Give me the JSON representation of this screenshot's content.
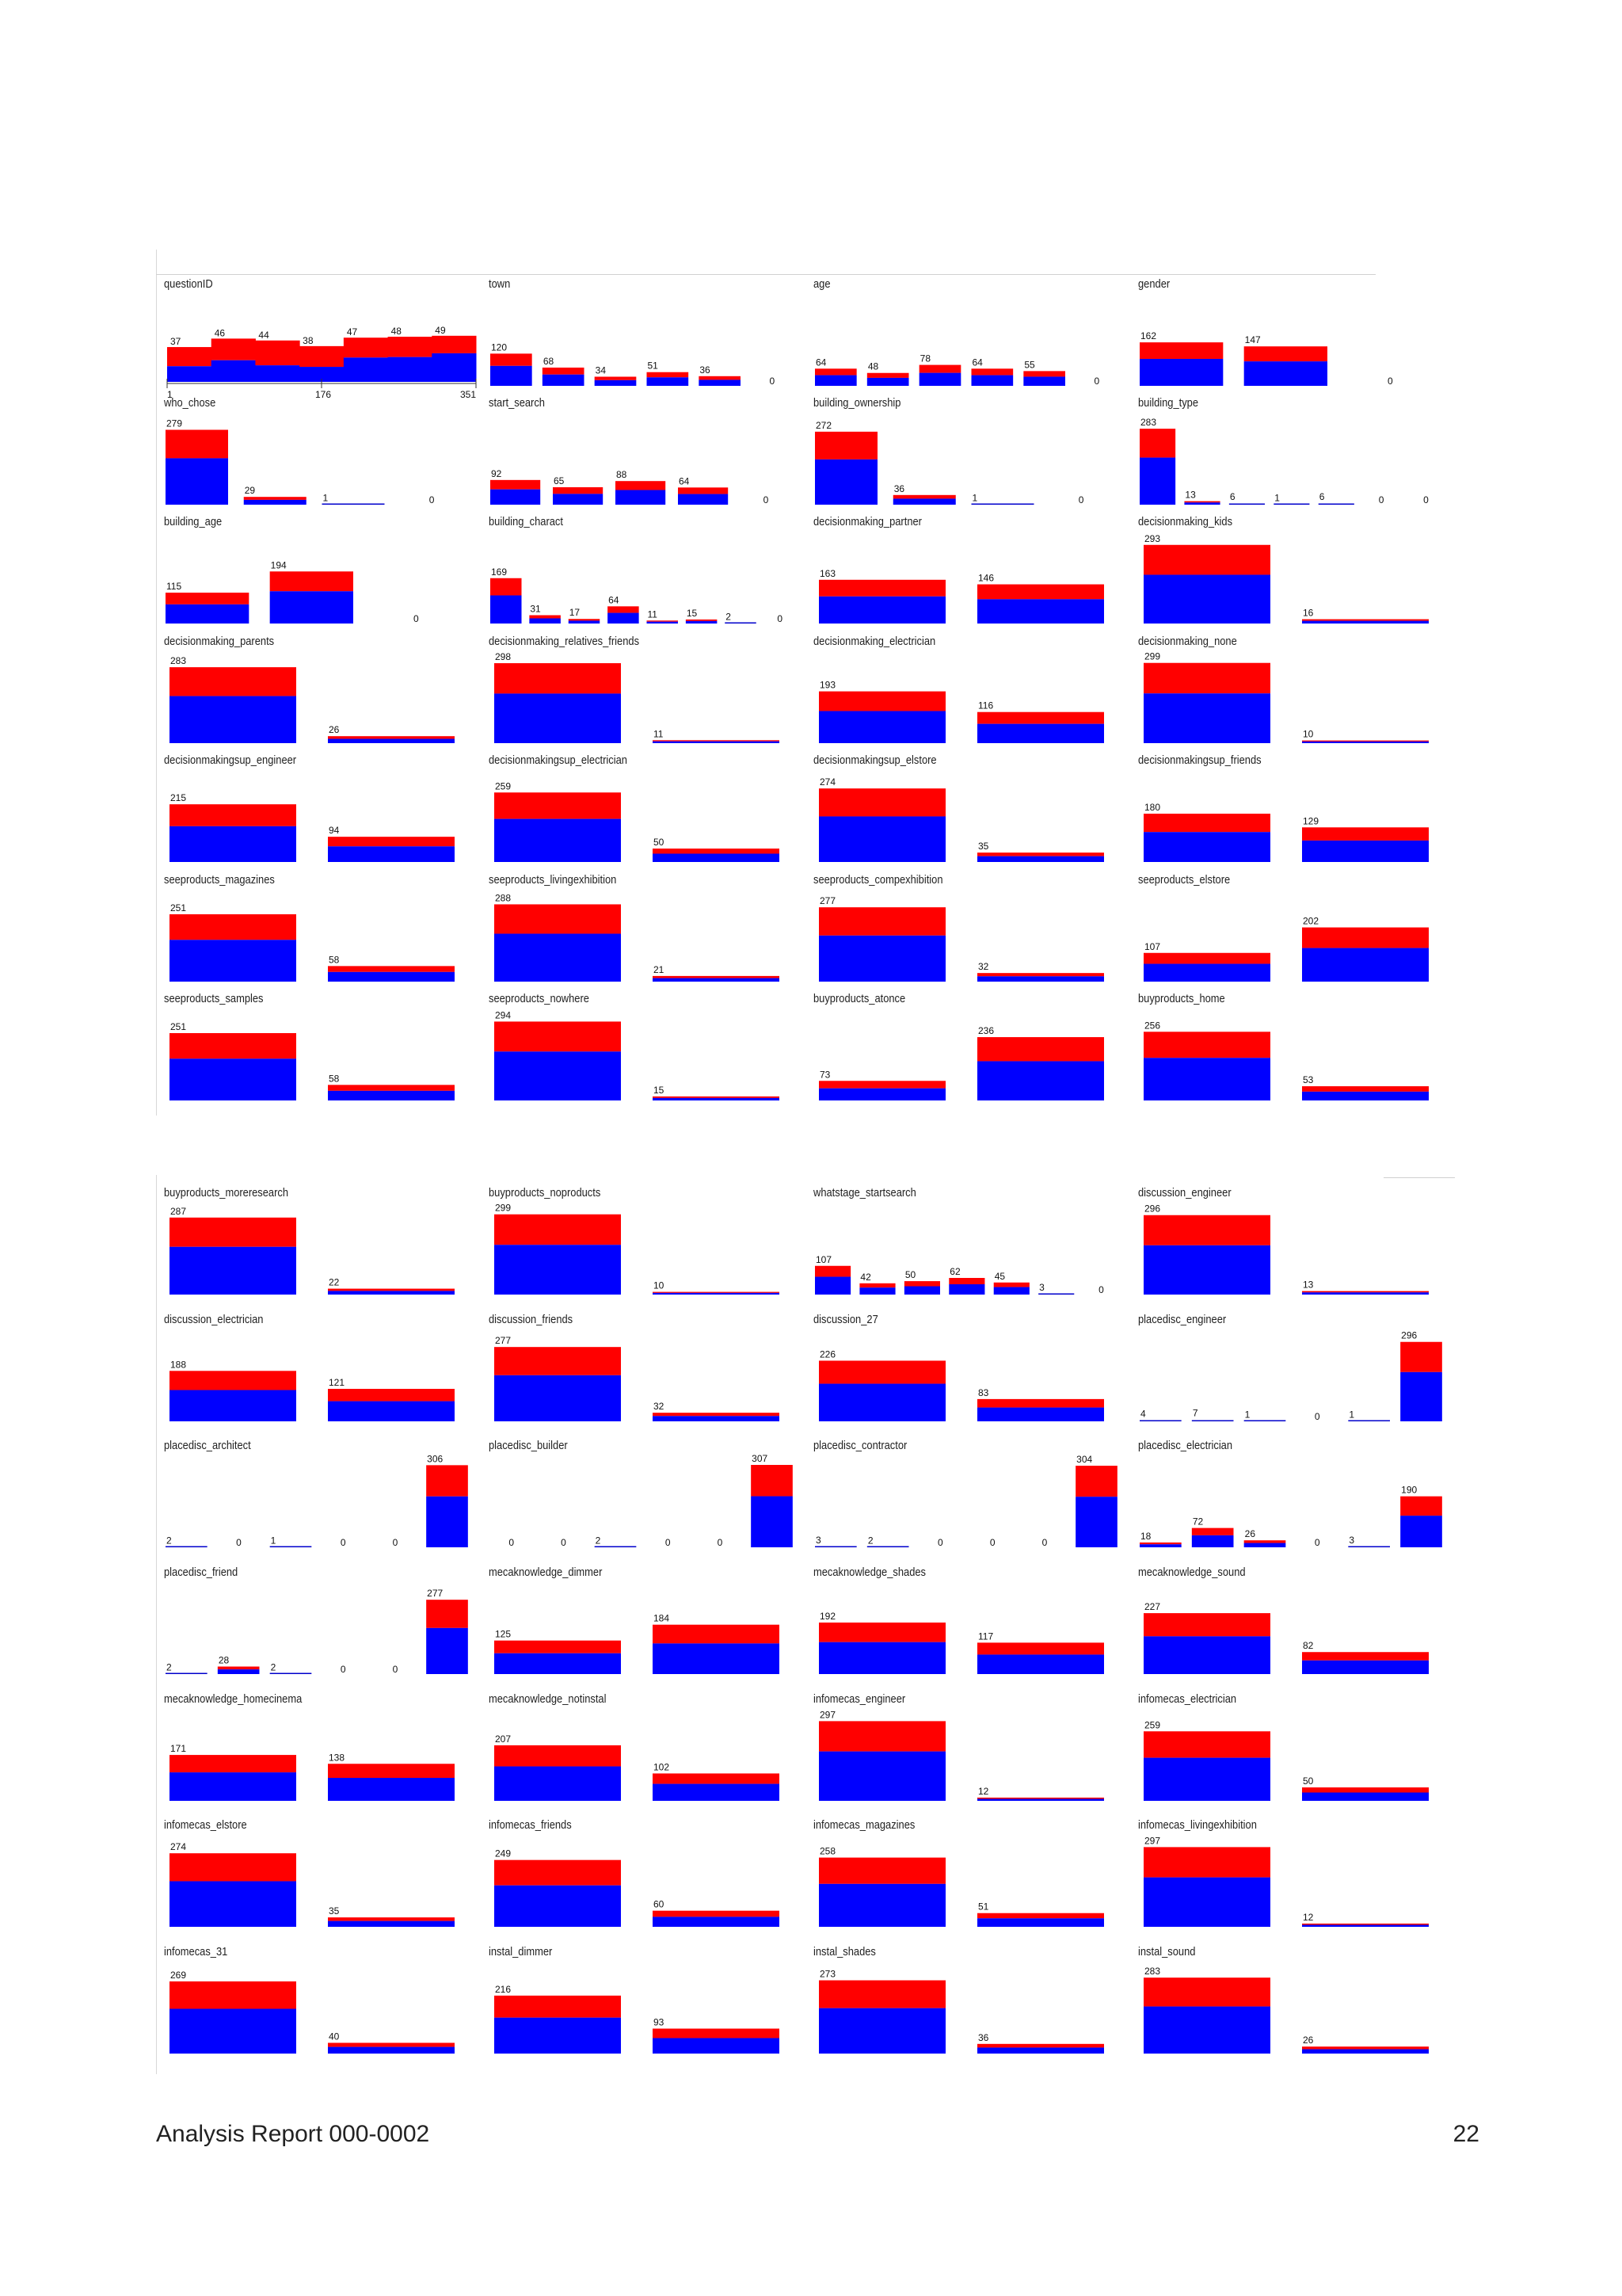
{
  "colors": {
    "top": "#ff0000",
    "bottom": "#0000ff",
    "line": "#0000cc"
  },
  "footer": {
    "left": "Analysis Report 000-0002",
    "right": "22"
  },
  "chart_data": [
    {
      "title": "questionID",
      "type": "histogram",
      "values": [
        37,
        46,
        44,
        38,
        47,
        48,
        49
      ],
      "fracs": [
        0.45,
        0.5,
        0.4,
        0.42,
        0.55,
        0.55,
        0.62
      ],
      "axis_ticks": [
        "1",
        "176",
        "351"
      ]
    },
    {
      "title": "town",
      "type": "bar",
      "values": [
        120,
        68,
        34,
        51,
        36,
        0
      ]
    },
    {
      "title": "age",
      "type": "bar",
      "values": [
        64,
        48,
        78,
        64,
        55,
        0
      ]
    },
    {
      "title": "gender",
      "type": "bar",
      "values": [
        162,
        147,
        0
      ]
    },
    {
      "title": "who_chose",
      "type": "bar",
      "values": [
        279,
        29,
        1,
        0
      ]
    },
    {
      "title": "start_search",
      "type": "bar",
      "values": [
        92,
        65,
        88,
        64,
        0
      ]
    },
    {
      "title": "building_ownership",
      "type": "bar",
      "values": [
        272,
        36,
        1,
        0
      ]
    },
    {
      "title": "building_type",
      "type": "bar",
      "values": [
        283,
        13,
        6,
        1,
        6,
        0,
        0
      ]
    },
    {
      "title": "building_age",
      "type": "bar",
      "values": [
        115,
        194,
        0
      ]
    },
    {
      "title": "building_charact",
      "type": "bar",
      "values": [
        169,
        31,
        17,
        64,
        11,
        15,
        2,
        0
      ]
    },
    {
      "title": "decisionmaking_partner",
      "type": "bar",
      "values": [
        163,
        146
      ]
    },
    {
      "title": "decisionmaking_kids",
      "type": "bar",
      "values": [
        293,
        16
      ]
    },
    {
      "title": "decisionmaking_parents",
      "type": "bar",
      "values": [
        283,
        26
      ]
    },
    {
      "title": "decisionmaking_relatives_friends",
      "type": "bar",
      "values": [
        298,
        11
      ]
    },
    {
      "title": "decisionmaking_electrician",
      "type": "bar",
      "values": [
        193,
        116
      ]
    },
    {
      "title": "decisionmaking_none",
      "type": "bar",
      "values": [
        299,
        10
      ]
    },
    {
      "title": "decisionmakingsup_engineer",
      "type": "bar",
      "values": [
        215,
        94
      ]
    },
    {
      "title": "decisionmakingsup_electrician",
      "type": "bar",
      "values": [
        259,
        50
      ]
    },
    {
      "title": "decisionmakingsup_elstore",
      "type": "bar",
      "values": [
        274,
        35
      ]
    },
    {
      "title": "decisionmakingsup_friends",
      "type": "bar",
      "values": [
        180,
        129
      ]
    },
    {
      "title": "seeproducts_magazines",
      "type": "bar",
      "values": [
        251,
        58
      ]
    },
    {
      "title": "seeproducts_livingexhibition",
      "type": "bar",
      "values": [
        288,
        21
      ]
    },
    {
      "title": "seeproducts_compexhibition",
      "type": "bar",
      "values": [
        277,
        32
      ]
    },
    {
      "title": "seeproducts_elstore",
      "type": "bar",
      "values": [
        107,
        202
      ]
    },
    {
      "title": "seeproducts_samples",
      "type": "bar",
      "values": [
        251,
        58
      ]
    },
    {
      "title": "seeproducts_nowhere",
      "type": "bar",
      "values": [
        294,
        15
      ]
    },
    {
      "title": "buyproducts_atonce",
      "type": "bar",
      "values": [
        73,
        236
      ]
    },
    {
      "title": "buyproducts_home",
      "type": "bar",
      "values": [
        256,
        53
      ]
    },
    {
      "title": "buyproducts_moreresearch",
      "type": "bar",
      "values": [
        287,
        22
      ]
    },
    {
      "title": "buyproducts_noproducts",
      "type": "bar",
      "values": [
        299,
        10
      ]
    },
    {
      "title": "whatstage_startsearch",
      "type": "bar",
      "values": [
        107,
        42,
        50,
        62,
        45,
        3,
        0
      ]
    },
    {
      "title": "discussion_engineer",
      "type": "bar",
      "values": [
        296,
        13
      ]
    },
    {
      "title": "discussion_electrician",
      "type": "bar",
      "values": [
        188,
        121
      ]
    },
    {
      "title": "discussion_friends",
      "type": "bar",
      "values": [
        277,
        32
      ]
    },
    {
      "title": "discussion_27",
      "type": "bar",
      "values": [
        226,
        83
      ]
    },
    {
      "title": "placedisc_engineer",
      "type": "bar",
      "values": [
        4,
        7,
        1,
        0,
        1,
        296
      ]
    },
    {
      "title": "placedisc_architect",
      "type": "bar",
      "values": [
        2,
        0,
        1,
        0,
        0,
        306
      ]
    },
    {
      "title": "placedisc_builder",
      "type": "bar",
      "values": [
        0,
        0,
        2,
        0,
        0,
        307
      ]
    },
    {
      "title": "placedisc_contractor",
      "type": "bar",
      "values": [
        3,
        2,
        0,
        0,
        0,
        304
      ]
    },
    {
      "title": "placedisc_electrician",
      "type": "bar",
      "values": [
        18,
        72,
        26,
        0,
        3,
        190
      ]
    },
    {
      "title": "placedisc_friend",
      "type": "bar",
      "values": [
        2,
        28,
        2,
        0,
        0,
        277
      ]
    },
    {
      "title": "mecaknowledge_dimmer",
      "type": "bar",
      "values": [
        125,
        184
      ]
    },
    {
      "title": "mecaknowledge_shades",
      "type": "bar",
      "values": [
        192,
        117
      ]
    },
    {
      "title": "mecaknowledge_sound",
      "type": "bar",
      "values": [
        227,
        82
      ]
    },
    {
      "title": "mecaknowledge_homecinema",
      "type": "bar",
      "values": [
        171,
        138
      ]
    },
    {
      "title": "mecaknowledge_notinstal",
      "type": "bar",
      "values": [
        207,
        102
      ]
    },
    {
      "title": "infomecas_engineer",
      "type": "bar",
      "values": [
        297,
        12
      ]
    },
    {
      "title": "infomecas_electrician",
      "type": "bar",
      "values": [
        259,
        50
      ]
    },
    {
      "title": "infomecas_elstore",
      "type": "bar",
      "values": [
        274,
        35
      ]
    },
    {
      "title": "infomecas_friends",
      "type": "bar",
      "values": [
        249,
        60
      ]
    },
    {
      "title": "infomecas_magazines",
      "type": "bar",
      "values": [
        258,
        51
      ]
    },
    {
      "title": "infomecas_livingexhibition",
      "type": "bar",
      "values": [
        297,
        12
      ]
    },
    {
      "title": "infomecas_31",
      "type": "bar",
      "values": [
        269,
        40
      ]
    },
    {
      "title": "instal_dimmer",
      "type": "bar",
      "values": [
        216,
        93
      ]
    },
    {
      "title": "instal_shades",
      "type": "bar",
      "values": [
        273,
        36
      ]
    },
    {
      "title": "instal_sound",
      "type": "bar",
      "values": [
        283,
        26
      ]
    }
  ]
}
